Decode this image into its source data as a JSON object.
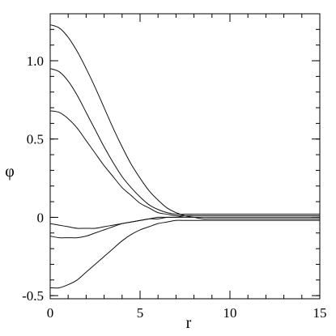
{
  "chart_data": {
    "type": "line",
    "title": "",
    "xlabel": "r",
    "ylabel": "φ",
    "xlim": [
      0,
      15
    ],
    "ylim": [
      -0.52,
      1.3
    ],
    "grid": false,
    "legend": "none",
    "x_ticks": [
      {
        "value": 0,
        "label": "0"
      },
      {
        "value": 5,
        "label": "5"
      },
      {
        "value": 10,
        "label": "10"
      },
      {
        "value": 15,
        "label": "15"
      }
    ],
    "y_ticks": [
      {
        "value": -0.5,
        "label": "-0.5"
      },
      {
        "value": 0,
        "label": "0"
      },
      {
        "value": 0.5,
        "label": "0.5"
      },
      {
        "value": 1.0,
        "label": "1.0"
      }
    ],
    "x_minor_step": 1,
    "y_minor_step": 0.1,
    "x": [
      0,
      0.5,
      1,
      1.5,
      2,
      2.5,
      3,
      3.5,
      4,
      4.5,
      5,
      5.5,
      6,
      6.5,
      7,
      7.5,
      8,
      8.5,
      9,
      9.5,
      10,
      11,
      12,
      13,
      14,
      15
    ],
    "series": [
      {
        "values": [
          1.23,
          1.21,
          1.15,
          1.06,
          0.95,
          0.83,
          0.7,
          0.57,
          0.45,
          0.34,
          0.25,
          0.17,
          0.11,
          0.06,
          0.03,
          0.01,
          0.0,
          -0.01,
          -0.01,
          -0.01,
          -0.01,
          -0.01,
          -0.01,
          -0.01,
          -0.01,
          -0.01
        ]
      },
      {
        "values": [
          0.95,
          0.93,
          0.87,
          0.78,
          0.67,
          0.56,
          0.45,
          0.35,
          0.26,
          0.19,
          0.13,
          0.08,
          0.05,
          0.03,
          0.02,
          0.02,
          0.02,
          0.02,
          0.02,
          0.02,
          0.02,
          0.02,
          0.02,
          0.02,
          0.02,
          0.02
        ]
      },
      {
        "values": [
          0.68,
          0.67,
          0.63,
          0.57,
          0.49,
          0.41,
          0.33,
          0.26,
          0.19,
          0.14,
          0.09,
          0.06,
          0.03,
          0.02,
          0.01,
          0.01,
          0.01,
          0.01,
          0.01,
          0.01,
          0.01,
          0.01,
          0.01,
          0.01,
          0.01,
          0.01
        ]
      },
      {
        "values": [
          -0.04,
          -0.05,
          -0.06,
          -0.07,
          -0.07,
          -0.07,
          -0.06,
          -0.05,
          -0.04,
          -0.03,
          -0.02,
          -0.01,
          -0.01,
          0.0,
          0.0,
          0.01,
          0.01,
          0.01,
          0.01,
          0.01,
          0.01,
          0.01,
          0.01,
          0.01,
          0.01,
          0.01
        ]
      },
      {
        "values": [
          -0.12,
          -0.13,
          -0.13,
          -0.13,
          -0.12,
          -0.1,
          -0.08,
          -0.06,
          -0.04,
          -0.03,
          -0.02,
          -0.01,
          0.0,
          0.0,
          0.0,
          0.0,
          0.0,
          0.0,
          0.0,
          0.0,
          0.0,
          0.0,
          0.0,
          0.0,
          0.0,
          0.0
        ]
      },
      {
        "values": [
          -0.45,
          -0.45,
          -0.43,
          -0.4,
          -0.35,
          -0.3,
          -0.25,
          -0.2,
          -0.15,
          -0.11,
          -0.08,
          -0.06,
          -0.04,
          -0.03,
          -0.02,
          -0.02,
          -0.02,
          -0.02,
          -0.02,
          -0.02,
          -0.02,
          -0.02,
          -0.02,
          -0.02,
          -0.02,
          -0.02
        ]
      }
    ]
  }
}
